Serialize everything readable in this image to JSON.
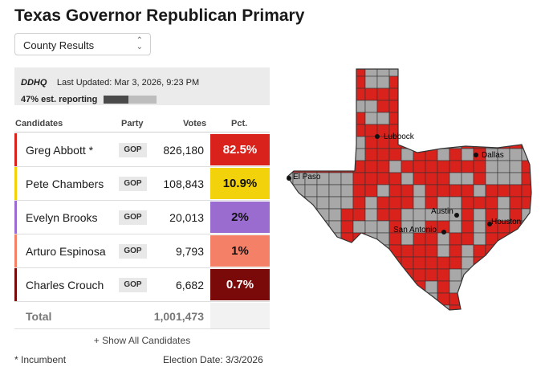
{
  "title": "Texas Governor Republican Primary",
  "view_select": {
    "value": "County Results"
  },
  "update": {
    "logo": "DDHQ",
    "last_updated": "Last Updated: Mar 3, 2026, 9:23 PM",
    "reporting_text": "47% est. reporting",
    "reporting_fraction": 0.47
  },
  "table": {
    "headers": {
      "candidates": "Candidates",
      "party": "Party",
      "votes": "Votes",
      "pct": "Pct."
    },
    "rows": [
      {
        "name": "Greg Abbott *",
        "party": "GOP",
        "votes": "826,180",
        "pct": "82.5%",
        "color": "#d9221c",
        "text_color": "#ffffff"
      },
      {
        "name": "Pete Chambers",
        "party": "GOP",
        "votes": "108,843",
        "pct": "10.9%",
        "color": "#f2d20a",
        "text_color": "#111111"
      },
      {
        "name": "Evelyn Brooks",
        "party": "GOP",
        "votes": "20,013",
        "pct": "2%",
        "color": "#9a6ccf",
        "text_color": "#111111"
      },
      {
        "name": "Arturo Espinosa",
        "party": "GOP",
        "votes": "9,793",
        "pct": "1%",
        "color": "#f58068",
        "text_color": "#111111"
      },
      {
        "name": "Charles Crouch",
        "party": "GOP",
        "votes": "6,682",
        "pct": "0.7%",
        "color": "#7a0a0a",
        "text_color": "#ffffff"
      }
    ],
    "total_label": "Total",
    "total_votes": "1,001,473"
  },
  "show_all": "+ Show All Candidates",
  "footer": {
    "incumbent": "* Incumbent",
    "election_date": "Election Date: 3/3/2026"
  },
  "map": {
    "cities": [
      "Lubbock",
      "Dallas",
      "El Paso",
      "Austin",
      "Houston",
      "San Antonio"
    ],
    "winner_color": "#d9221c",
    "no_results_color": "#a8a8a8"
  }
}
